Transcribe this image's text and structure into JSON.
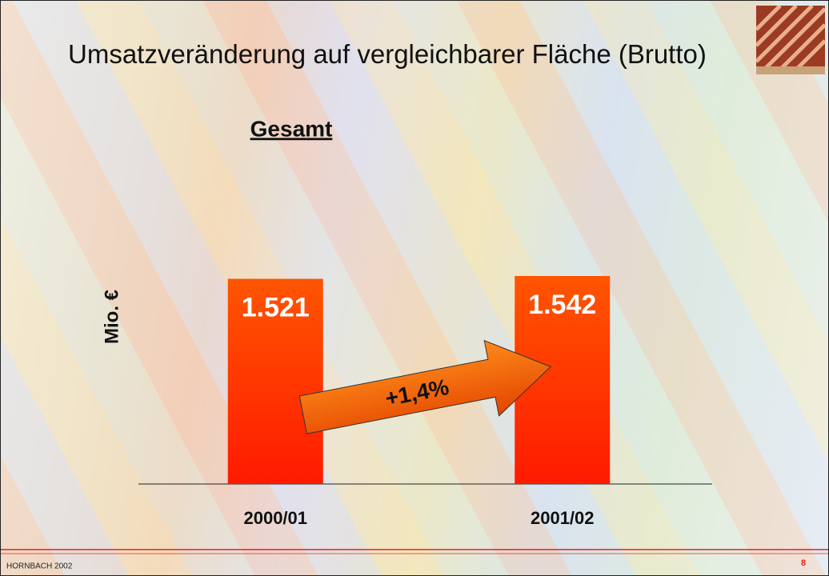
{
  "chart_data": {
    "type": "bar",
    "title": "Umsatzveränderung auf vergleichbarer Fläche (Brutto)",
    "subtitle": "Gesamt",
    "y_label": "Mio. €",
    "categories": [
      "2000/01",
      "2001/02"
    ],
    "values": [
      1521,
      1542
    ],
    "value_labels": [
      "1.521",
      "1.542"
    ],
    "color": "#ff5500",
    "annotations": [
      "+1,4%"
    ]
  },
  "footer": {
    "left": "HORNBACH 2002",
    "page": "8"
  }
}
